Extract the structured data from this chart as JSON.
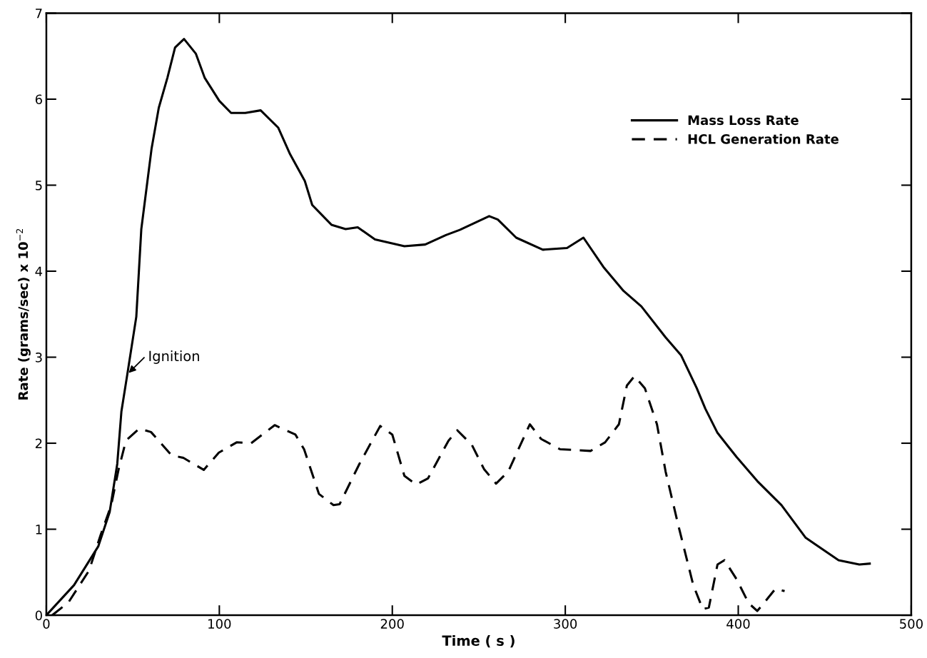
{
  "chart_data": {
    "type": "line",
    "xlabel": "Time ( s )",
    "ylabel": "Rate (grams/sec) x 10$^{−2}$",
    "xlim": [
      0,
      500
    ],
    "xticks": [
      0,
      100,
      200,
      300,
      400,
      500
    ],
    "ylim": [
      0,
      7
    ],
    "yticks": [
      0,
      1,
      2,
      3,
      4,
      5,
      6,
      7
    ],
    "grid": false,
    "legend": "top right",
    "annotations": [
      {
        "text": "Ignition",
        "x": 46.8,
        "y": 2.8
      }
    ],
    "series": [
      {
        "name": "Mass Loss Rate",
        "color": "#000000",
        "line_style": "solid",
        "x": [
          0,
          16,
          30,
          36.6,
          41,
          43.4,
          46.8,
          52,
          54.9,
          60.8,
          65,
          70,
          74.4,
          79.6,
          86.4,
          91.5,
          100,
          106.8,
          115,
          123.9,
          134,
          140.9,
          149.4,
          153.7,
          164.8,
          173,
          180,
          190,
          207,
          219,
          231,
          239,
          256,
          261,
          271.6,
          287,
          301,
          310.5,
          322,
          333.7,
          344,
          358,
          367,
          376,
          381,
          388,
          399,
          411,
          425,
          439,
          458,
          470,
          476
        ],
        "values": [
          0,
          0.35,
          0.8,
          1.2,
          1.76,
          2.37,
          2.8,
          3.47,
          4.49,
          5.42,
          5.9,
          6.25,
          6.6,
          6.7,
          6.53,
          6.25,
          5.98,
          5.84,
          5.84,
          5.87,
          5.67,
          5.36,
          5.05,
          4.77,
          4.54,
          4.49,
          4.51,
          4.37,
          4.29,
          4.31,
          4.42,
          4.48,
          4.64,
          4.6,
          4.39,
          4.25,
          4.27,
          4.39,
          4.05,
          3.77,
          3.59,
          3.23,
          3.02,
          2.64,
          2.4,
          2.12,
          1.84,
          1.56,
          1.28,
          0.9,
          0.64,
          0.59,
          0.6
        ]
      },
      {
        "name": "HCL Generation Rate",
        "color": "#000000",
        "line_style": "dashed",
        "x": [
          3.4,
          12.8,
          24.7,
          31.5,
          37.5,
          41.7,
          46,
          53.7,
          60.5,
          72.4,
          79.2,
          91,
          99.7,
          110,
          118.4,
          132,
          144,
          149,
          157.6,
          166,
          169.5,
          181,
          193,
          200,
          207,
          213.8,
          220.6,
          232.5,
          237.6,
          246,
          253,
          260,
          267,
          279.5,
          286,
          297,
          314.6,
          323,
          331,
          335.6,
          340,
          346,
          353,
          358,
          365.4,
          374,
          379.5,
          383,
          388,
          392,
          399,
          406,
          411,
          416,
          421.6,
          426.8
        ],
        "values": [
          0,
          0.15,
          0.52,
          0.94,
          1.28,
          1.69,
          2.03,
          2.17,
          2.13,
          1.86,
          1.83,
          1.69,
          1.89,
          2.01,
          2.0,
          2.21,
          2.1,
          1.93,
          1.41,
          1.28,
          1.29,
          1.76,
          2.2,
          2.1,
          1.62,
          1.52,
          1.59,
          2.03,
          2.15,
          1.98,
          1.7,
          1.53,
          1.67,
          2.22,
          2.05,
          1.93,
          1.91,
          2.01,
          2.22,
          2.67,
          2.78,
          2.64,
          2.22,
          1.67,
          1.04,
          0.35,
          0.07,
          0.09,
          0.59,
          0.64,
          0.42,
          0.14,
          0.05,
          0.17,
          0.31,
          0.28
        ]
      }
    ]
  }
}
